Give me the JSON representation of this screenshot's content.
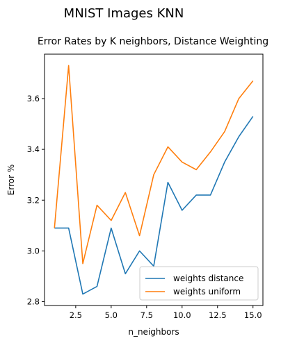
{
  "figure": {
    "suptitle": "MNIST Images KNN"
  },
  "chart_data": {
    "type": "line",
    "title": "Error Rates by K neighbors, Distance Weighting",
    "xlabel": "n_neighbors",
    "ylabel": "Error %",
    "xlim": [
      0.3,
      15.7
    ],
    "ylim": [
      2.785,
      3.775
    ],
    "xticks": [
      2.5,
      5.0,
      7.5,
      10.0,
      12.5,
      15.0
    ],
    "xtick_labels": [
      "2.5",
      "5.0",
      "7.5",
      "10.0",
      "12.5",
      "15.0"
    ],
    "yticks": [
      2.8,
      3.0,
      3.2,
      3.4,
      3.6
    ],
    "ytick_labels": [
      "2.8",
      "3.0",
      "3.2",
      "3.4",
      "3.6"
    ],
    "grid": false,
    "legend_position": "lower-right",
    "x": [
      1,
      2,
      3,
      4,
      5,
      6,
      7,
      8,
      9,
      10,
      11,
      12,
      13,
      14,
      15
    ],
    "series": [
      {
        "name": "weights distance",
        "color": "#1f77b4",
        "values": [
          3.09,
          3.09,
          2.83,
          2.86,
          3.09,
          2.91,
          3.0,
          2.94,
          3.27,
          3.16,
          3.22,
          3.22,
          3.35,
          3.45,
          3.53
        ]
      },
      {
        "name": "weights uniform",
        "color": "#ff7f0e",
        "values": [
          3.09,
          3.73,
          2.95,
          3.18,
          3.12,
          3.23,
          3.06,
          3.3,
          3.41,
          3.35,
          3.32,
          3.39,
          3.47,
          3.6,
          3.67
        ]
      }
    ]
  }
}
